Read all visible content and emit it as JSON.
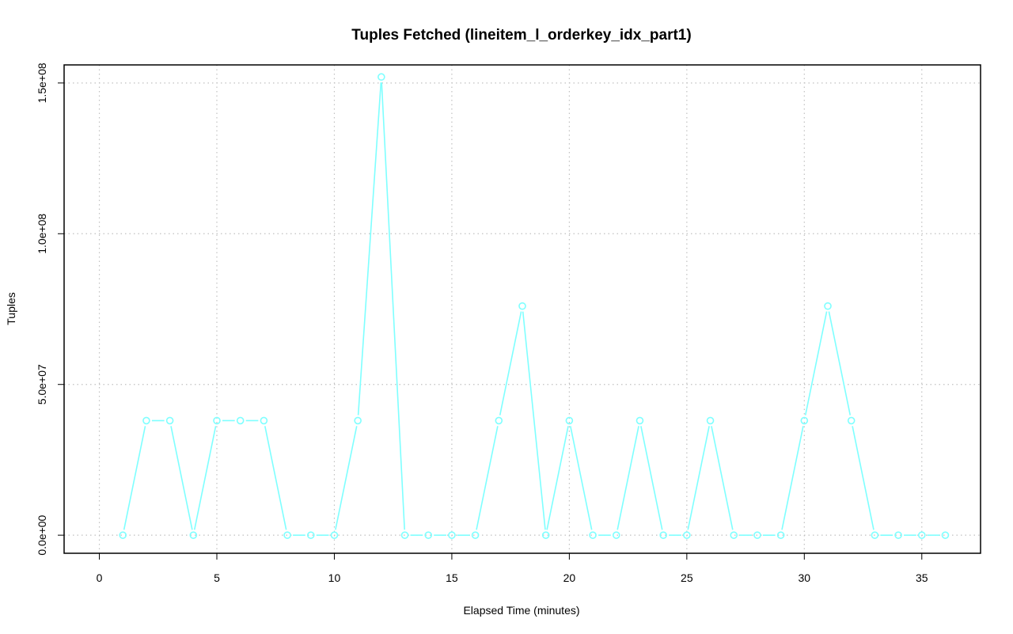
{
  "chart_data": {
    "type": "line",
    "title": "Tuples Fetched (lineitem_l_orderkey_idx_part1)",
    "xlabel": "Elapsed Time (minutes)",
    "ylabel": "Tuples",
    "xlim": [
      -1.5,
      37.5
    ],
    "ylim": [
      -6000000,
      156000000
    ],
    "x_ticks": [
      0,
      5,
      10,
      15,
      20,
      25,
      30,
      35
    ],
    "x_tick_labels": [
      "0",
      "5",
      "10",
      "15",
      "20",
      "25",
      "30",
      "35"
    ],
    "y_ticks": [
      0,
      50000000,
      100000000,
      150000000
    ],
    "y_tick_labels": [
      "0.0e+00",
      "5.0e+07",
      "1.0e+08",
      "1.5e+08"
    ],
    "grid": true,
    "legend": "none",
    "series": [
      {
        "color": "#7fffff",
        "marker": "open-circle",
        "x": [
          1,
          2,
          3,
          4,
          5,
          6,
          7,
          8,
          9,
          10,
          11,
          12,
          13,
          14,
          15,
          16,
          17,
          18,
          19,
          20,
          21,
          22,
          23,
          24,
          25,
          26,
          27,
          28,
          29,
          30,
          31,
          32,
          33,
          34,
          35,
          36
        ],
        "values": [
          0,
          38000000,
          38000000,
          0,
          38000000,
          38000000,
          38000000,
          0,
          0,
          0,
          38000000,
          152000000,
          0,
          0,
          0,
          0,
          38000000,
          76000000,
          0,
          38000000,
          0,
          0,
          38000000,
          0,
          0,
          38000000,
          0,
          0,
          0,
          38000000,
          76000000,
          38000000,
          0,
          0,
          0,
          0
        ]
      }
    ]
  }
}
